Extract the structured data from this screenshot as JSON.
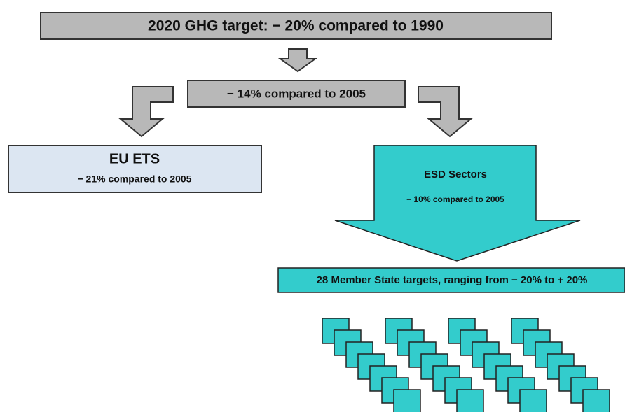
{
  "top_target": {
    "label": "2020 GHG target: − 20% compared to 1990"
  },
  "mid_target": {
    "label": "− 14% compared to 2005"
  },
  "eu_ets": {
    "title": "EU ETS",
    "label": "− 21% compared  to 2005"
  },
  "esd": {
    "title": "ESD Sectors",
    "label": "− 10% compared to 2005"
  },
  "member_states": {
    "label": "28 Member State targets, ranging from − 20% to + 20%"
  }
}
